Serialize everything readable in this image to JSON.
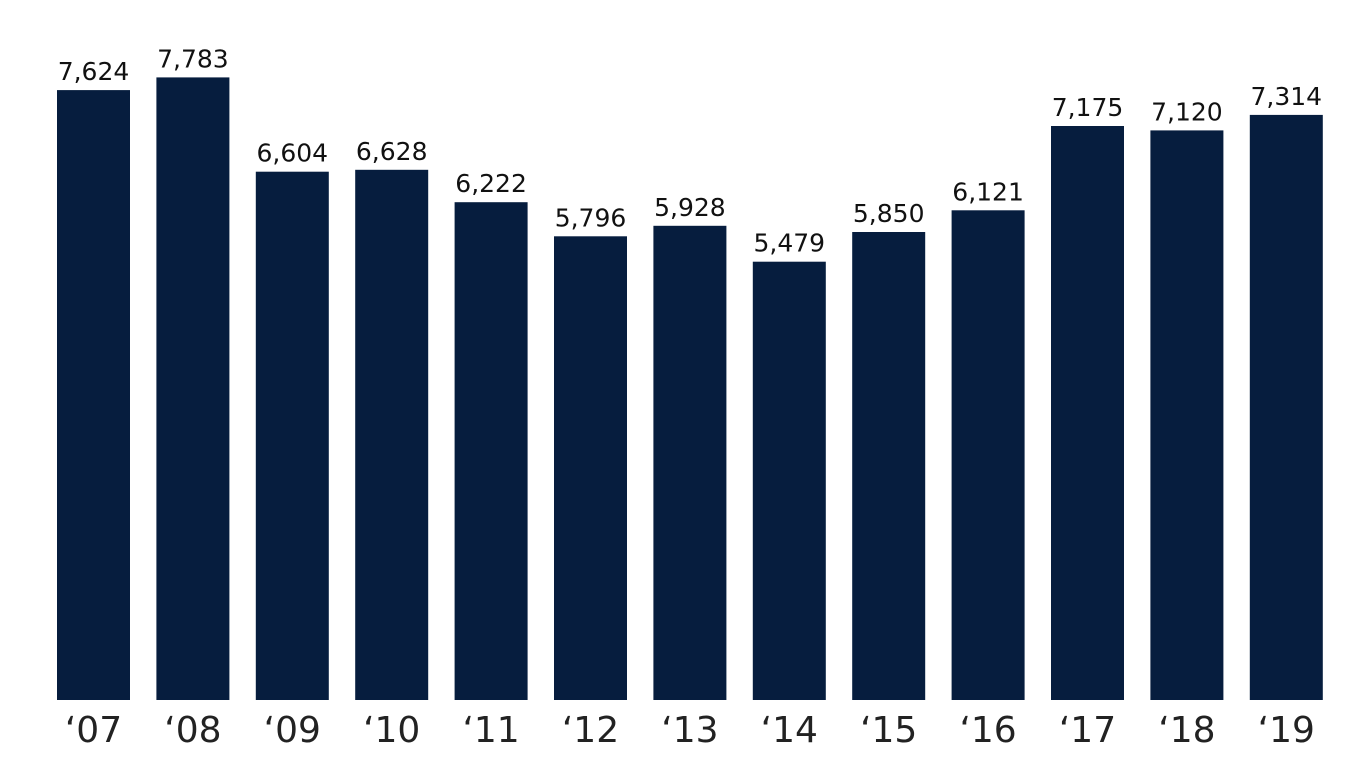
{
  "chart_data": {
    "type": "bar",
    "categories": [
      "‘07",
      "‘08",
      "‘09",
      "‘10",
      "‘11",
      "‘12",
      "‘13",
      "‘14",
      "‘15",
      "‘16",
      "‘17",
      "‘18",
      "‘19"
    ],
    "values": [
      7624,
      7783,
      6604,
      6628,
      6222,
      5796,
      5928,
      5479,
      5850,
      6121,
      7175,
      7120,
      7314
    ],
    "value_labels": [
      "7,624",
      "7,783",
      "6,604",
      "6,628",
      "6,222",
      "5,796",
      "5,928",
      "5,479",
      "5,850",
      "6,121",
      "7,175",
      "7,120",
      "7,314"
    ],
    "title": "",
    "xlabel": "",
    "ylabel": "",
    "ylim": [
      0,
      8000
    ],
    "grid": false,
    "legend": "none",
    "bar_color": "#061d3e"
  }
}
